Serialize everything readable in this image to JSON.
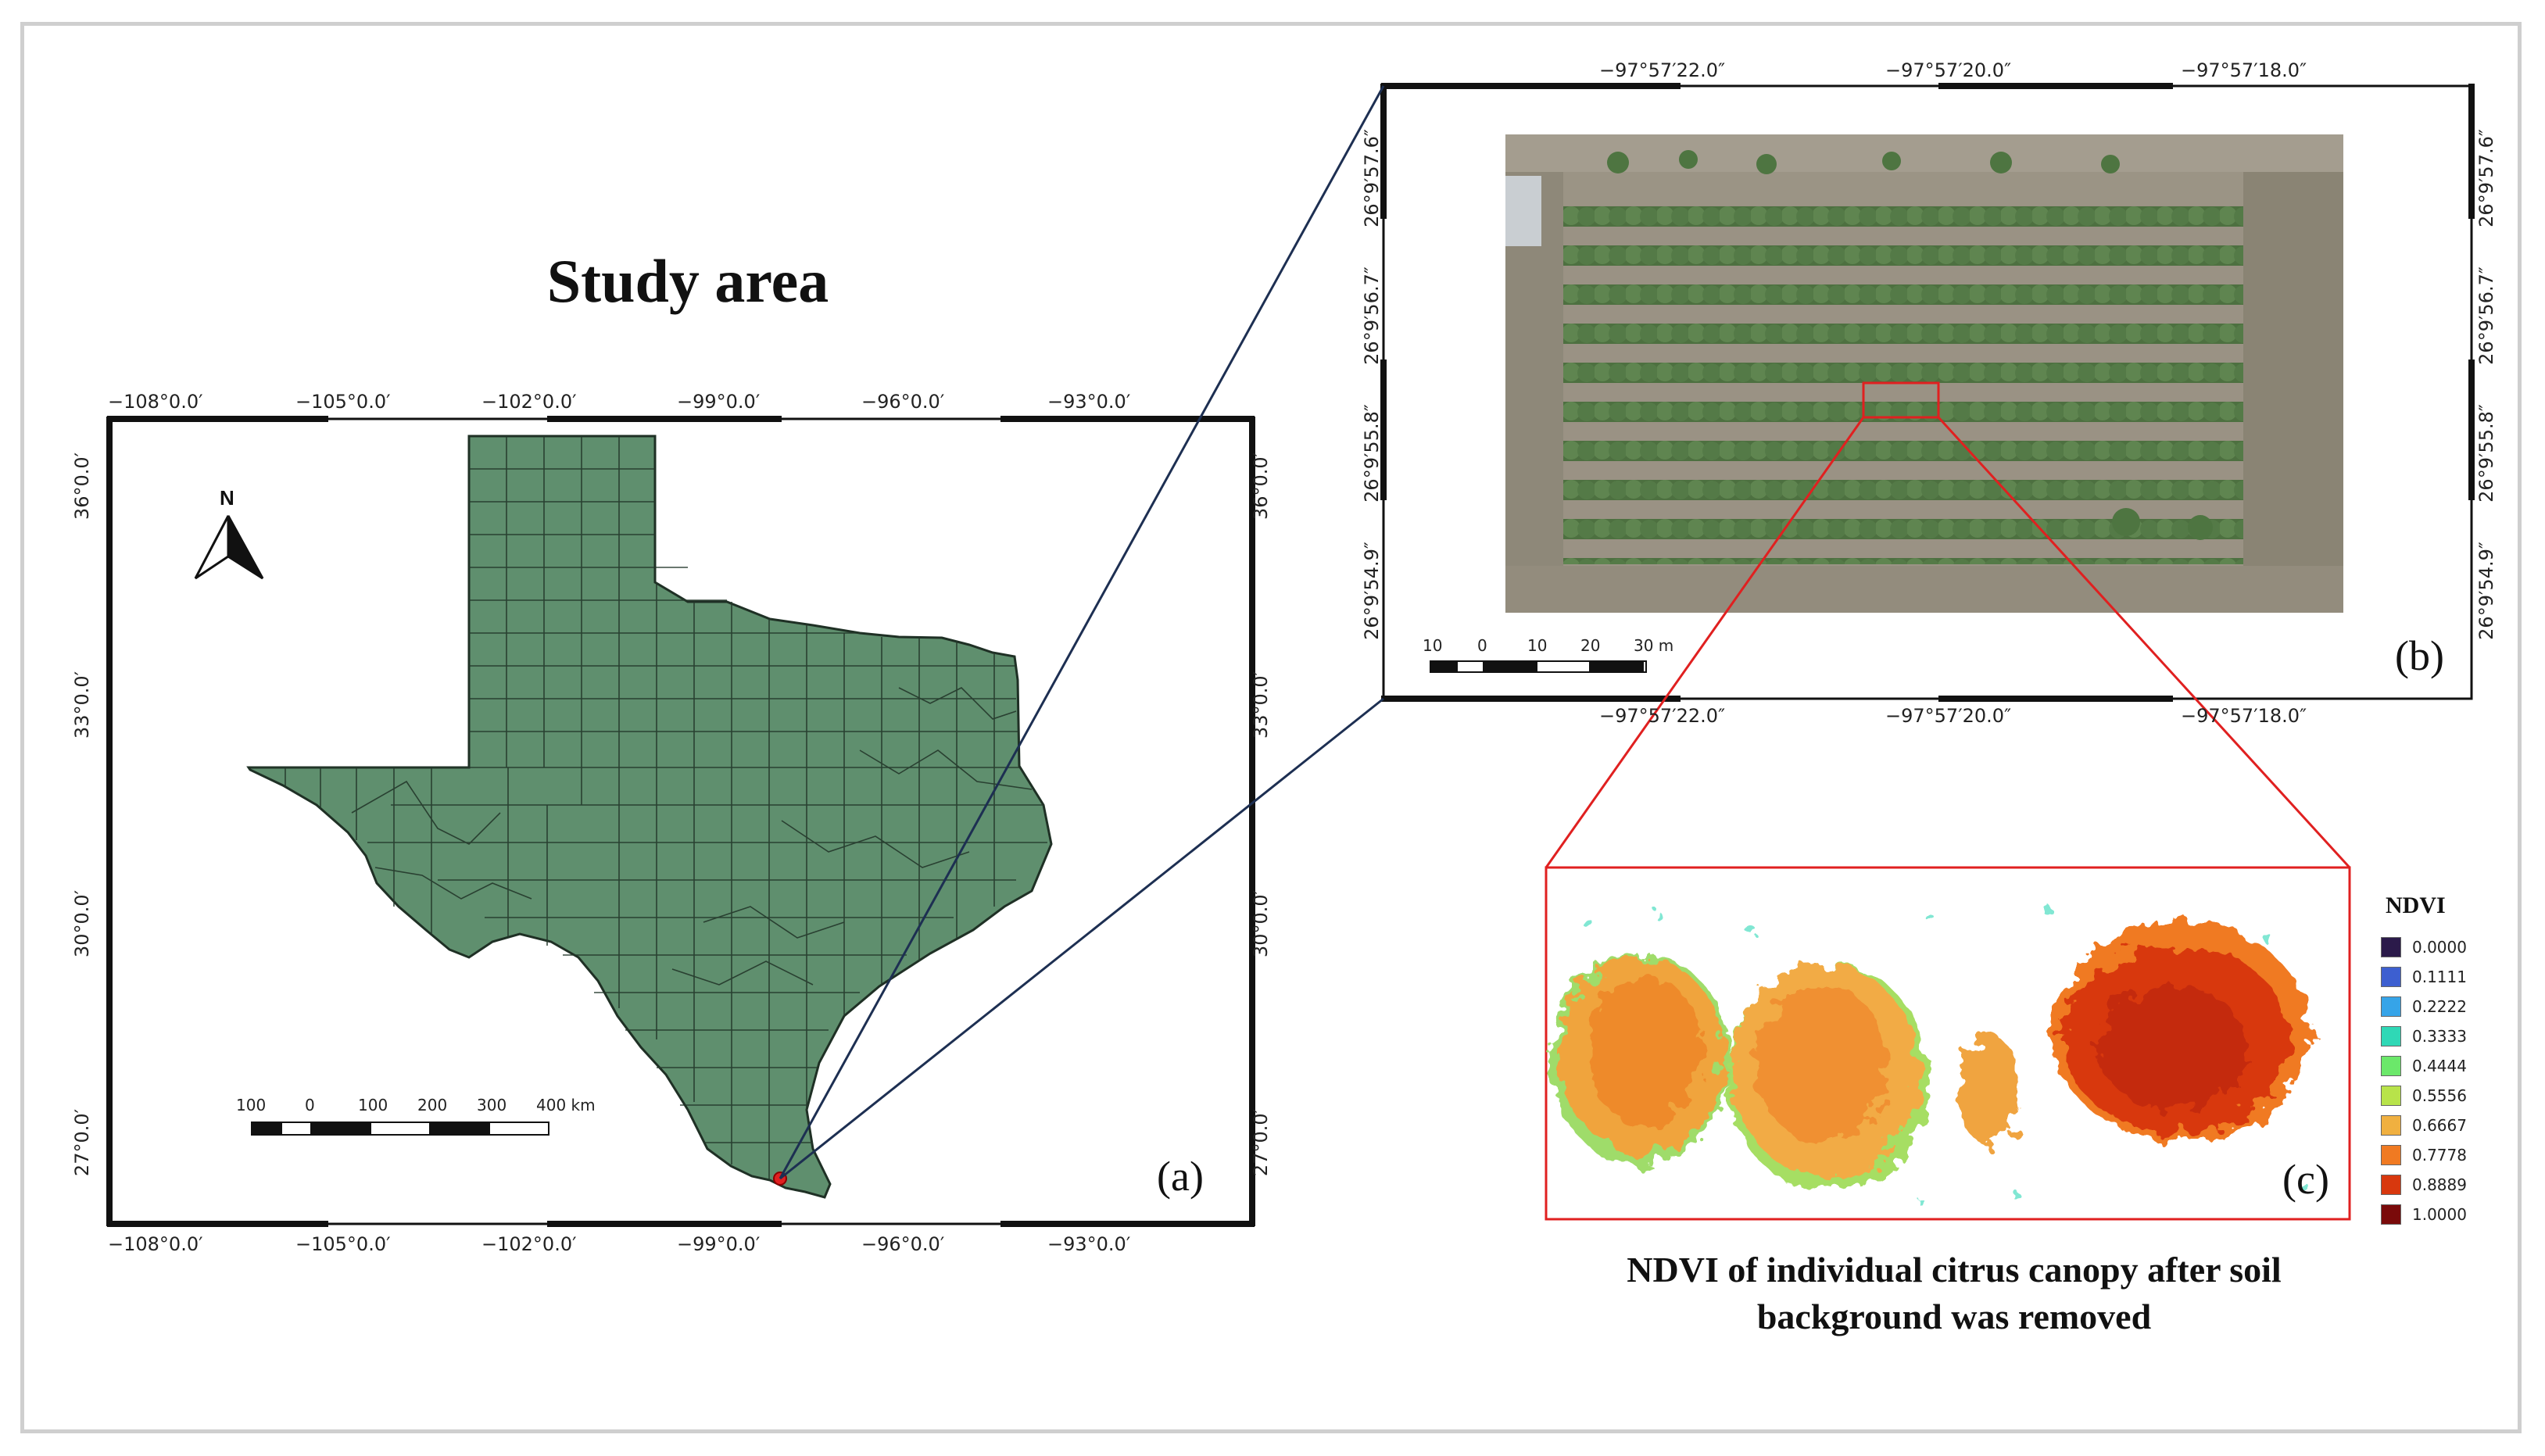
{
  "colors": {
    "state_fill": "#5f8f6e",
    "county_lines": "#24382b",
    "connector_line": "#1d2f52",
    "highlight": "#e02020",
    "frame_border": "#cfcfcf"
  },
  "titles": {
    "study_area": "Study area",
    "ndvi_caption_line1": "NDVI of individual citrus canopy after soil",
    "ndvi_caption_line2": "background was removed"
  },
  "panel_a": {
    "label": "(a)",
    "top_ticks": [
      "−108°0.0′",
      "−105°0.0′",
      "−102°0.0′",
      "−99°0.0′",
      "−96°0.0′",
      "−93°0.0′"
    ],
    "bottom_ticks": [
      "−108°0.0′",
      "−105°0.0′",
      "−102°0.0′",
      "−99°0.0′",
      "−96°0.0′",
      "−93°0.0′"
    ],
    "left_ticks": [
      "36°0.0′",
      "33°0.0′",
      "30°0.0′",
      "27°0.0′"
    ],
    "right_ticks": [
      "36°0.0′",
      "33°0.0′",
      "30°0.0′",
      "27°0.0′"
    ],
    "north_label": "N",
    "scale_labels": [
      "100",
      "0",
      "100",
      "200",
      "300",
      "400 km"
    ]
  },
  "panel_b": {
    "label": "(b)",
    "top_ticks": [
      "−97°57′22.0″",
      "−97°57′20.0″",
      "−97°57′18.0″"
    ],
    "bottom_ticks": [
      "−97°57′22.0″",
      "−97°57′20.0″",
      "−97°57′18.0″"
    ],
    "left_ticks": [
      "26°9′57.6″",
      "26°9′56.7″",
      "26°9′55.8″",
      "26°9′54.9″"
    ],
    "right_ticks": [
      "26°9′57.6″",
      "26°9′56.7″",
      "26°9′55.8″",
      "26°9′54.9″"
    ],
    "scale_labels": [
      "10",
      "0",
      "10",
      "20",
      "30 m"
    ]
  },
  "panel_c": {
    "label": "(c)"
  },
  "legend": {
    "title": "NDVI",
    "items": [
      {
        "label": "0.0000",
        "color": "#2b1a4a"
      },
      {
        "label": "0.1111",
        "color": "#3d5fd0"
      },
      {
        "label": "0.2222",
        "color": "#36a4e8"
      },
      {
        "label": "0.3333",
        "color": "#2fd8b6"
      },
      {
        "label": "0.4444",
        "color": "#6be86a"
      },
      {
        "label": "0.5556",
        "color": "#b8e34a"
      },
      {
        "label": "0.6667",
        "color": "#f0b040"
      },
      {
        "label": "0.7778",
        "color": "#f07a22"
      },
      {
        "label": "0.8889",
        "color": "#d8380e"
      },
      {
        "label": "1.0000",
        "color": "#7a0a0a"
      }
    ]
  }
}
